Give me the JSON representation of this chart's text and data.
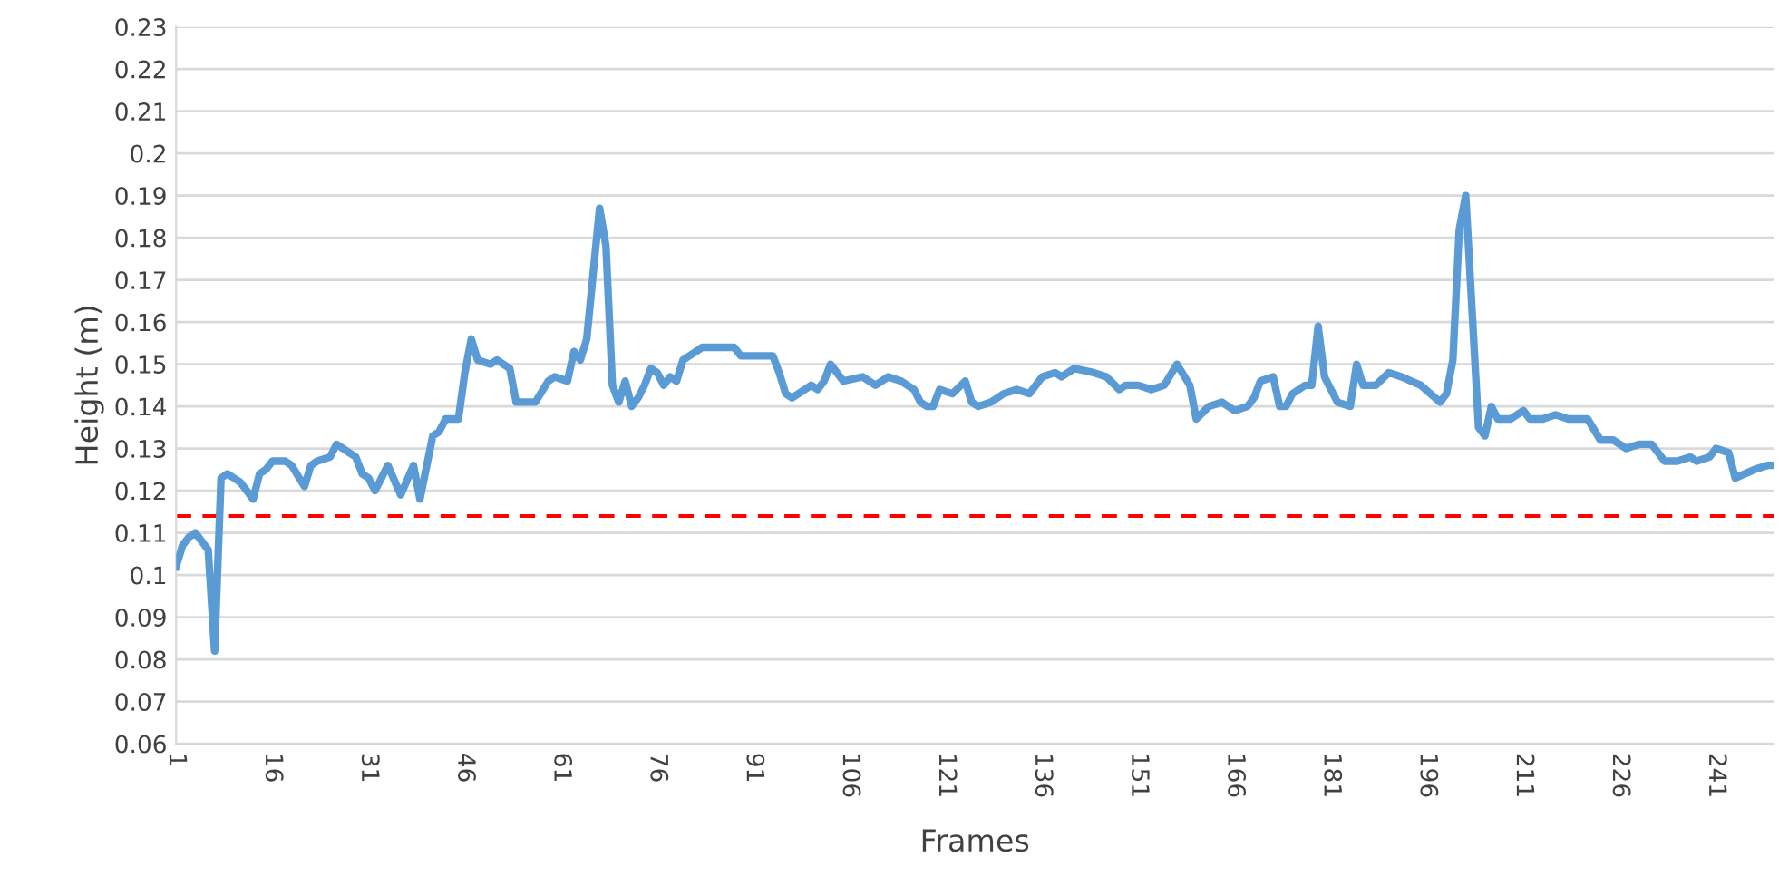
{
  "chart_data": {
    "type": "line",
    "xlabel": "Frames",
    "ylabel": "Height (m)",
    "series": [
      {
        "color": "#5b9bd5",
        "x": [
          1,
          2,
          3,
          4,
          5,
          6,
          7,
          8,
          9,
          10,
          11,
          12,
          13,
          14,
          15,
          16,
          18,
          19,
          21,
          22,
          23,
          25,
          26,
          27,
          28,
          29,
          30,
          31,
          32,
          34,
          36,
          38,
          39,
          41,
          42,
          43,
          45,
          46,
          47,
          48,
          50,
          51,
          53,
          54,
          57,
          59,
          60,
          62,
          63,
          64,
          65,
          67,
          68,
          69,
          70,
          71,
          72,
          73,
          74,
          75,
          76,
          77,
          78,
          79,
          80,
          82,
          83,
          88,
          89,
          94,
          95,
          96,
          97,
          99,
          100,
          101,
          102,
          103,
          104,
          105,
          108,
          110,
          112,
          114,
          116,
          117,
          118,
          119,
          120,
          122,
          124,
          125,
          126,
          128,
          130,
          132,
          134,
          136,
          138,
          139,
          141,
          144,
          146,
          148,
          149,
          151,
          153,
          155,
          157,
          159,
          160,
          162,
          164,
          166,
          168,
          169,
          170,
          172,
          173,
          174,
          175,
          177,
          178,
          179,
          180,
          182,
          184,
          185,
          186,
          188,
          190,
          192,
          195,
          198,
          199,
          200,
          201,
          202,
          204,
          205,
          206,
          207,
          209,
          211,
          212,
          214,
          216,
          218,
          221,
          223,
          225,
          227,
          229,
          231,
          233,
          235,
          237,
          238,
          240,
          241,
          243,
          244,
          247,
          249,
          250
        ],
        "values": [
          0.102,
          0.107,
          0.109,
          0.11,
          0.108,
          0.106,
          0.082,
          0.123,
          0.124,
          0.123,
          0.122,
          0.12,
          0.118,
          0.124,
          0.125,
          0.127,
          0.127,
          0.126,
          0.121,
          0.126,
          0.127,
          0.128,
          0.131,
          0.13,
          0.129,
          0.128,
          0.124,
          0.123,
          0.12,
          0.126,
          0.119,
          0.126,
          0.118,
          0.133,
          0.134,
          0.137,
          0.137,
          0.148,
          0.156,
          0.151,
          0.15,
          0.151,
          0.149,
          0.141,
          0.141,
          0.146,
          0.147,
          0.146,
          0.153,
          0.151,
          0.156,
          0.187,
          0.178,
          0.145,
          0.141,
          0.146,
          0.14,
          0.142,
          0.145,
          0.149,
          0.148,
          0.145,
          0.147,
          0.146,
          0.151,
          0.153,
          0.154,
          0.154,
          0.152,
          0.152,
          0.148,
          0.143,
          0.142,
          0.144,
          0.145,
          0.144,
          0.146,
          0.15,
          0.148,
          0.146,
          0.147,
          0.145,
          0.147,
          0.146,
          0.144,
          0.141,
          0.14,
          0.14,
          0.144,
          0.143,
          0.146,
          0.141,
          0.14,
          0.141,
          0.143,
          0.144,
          0.143,
          0.147,
          0.148,
          0.147,
          0.149,
          0.148,
          0.147,
          0.144,
          0.145,
          0.145,
          0.144,
          0.145,
          0.15,
          0.145,
          0.137,
          0.14,
          0.141,
          0.139,
          0.14,
          0.142,
          0.146,
          0.147,
          0.14,
          0.14,
          0.143,
          0.145,
          0.145,
          0.159,
          0.147,
          0.141,
          0.14,
          0.15,
          0.145,
          0.145,
          0.148,
          0.147,
          0.145,
          0.141,
          0.143,
          0.151,
          0.182,
          0.19,
          0.135,
          0.133,
          0.14,
          0.137,
          0.137,
          0.139,
          0.137,
          0.137,
          0.138,
          0.137,
          0.137,
          0.132,
          0.132,
          0.13,
          0.131,
          0.131,
          0.127,
          0.127,
          0.128,
          0.127,
          0.128,
          0.13,
          0.129,
          0.123,
          0.125,
          0.126,
          0.126
        ]
      }
    ],
    "xlim": [
      1,
      250
    ],
    "xticks": [
      1,
      16,
      31,
      46,
      61,
      76,
      91,
      106,
      121,
      136,
      151,
      166,
      181,
      196,
      211,
      226,
      241
    ],
    "ylim": [
      0.06,
      0.23
    ],
    "yticks": [
      0.06,
      0.07,
      0.08,
      0.09,
      0.1,
      0.11,
      0.12,
      0.13,
      0.14,
      0.15,
      0.16,
      0.17,
      0.18,
      0.19,
      0.2,
      0.21,
      0.22,
      0.23
    ],
    "ref_lines": [
      {
        "axis": "y",
        "value": 0.114,
        "color": "#ff0000",
        "line_style": "dashed"
      }
    ],
    "grid": "y",
    "marker": "none",
    "line_style": "solid"
  }
}
